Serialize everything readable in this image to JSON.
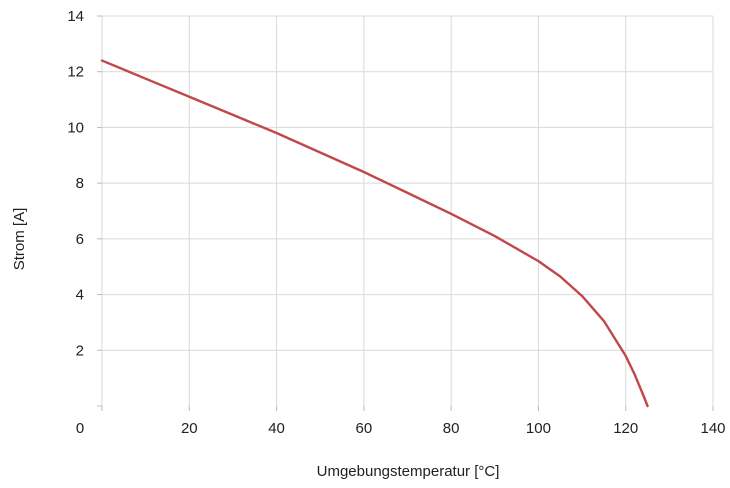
{
  "chart_data": {
    "type": "line",
    "title": "",
    "xlabel": "Umgebungstemperatur [°C]",
    "ylabel": "Strom [A]",
    "xlim": [
      0,
      140
    ],
    "ylim": [
      0,
      14
    ],
    "xticks": [
      0,
      20,
      40,
      60,
      80,
      100,
      120,
      140
    ],
    "yticks": [
      0,
      2,
      4,
      6,
      8,
      10,
      12,
      14
    ],
    "x_tick_labels": [
      "0",
      "20",
      "40",
      "60",
      "80",
      "100",
      "120",
      "140"
    ],
    "y_tick_labels": [
      "0",
      "2",
      "4",
      "6",
      "8",
      "10",
      "12",
      "14"
    ],
    "grid": true,
    "colors": {
      "line": "#c0474a",
      "grid": "#d9d9d9"
    },
    "series": [
      {
        "x": [
          0,
          10,
          20,
          30,
          40,
          50,
          60,
          70,
          80,
          90,
          100,
          105,
          110,
          115,
          120,
          122,
          124,
          125
        ],
        "y": [
          12.4,
          11.75,
          11.1,
          10.45,
          9.8,
          9.1,
          8.4,
          7.65,
          6.9,
          6.1,
          5.2,
          4.65,
          3.95,
          3.05,
          1.8,
          1.15,
          0.4,
          0
        ]
      }
    ]
  }
}
